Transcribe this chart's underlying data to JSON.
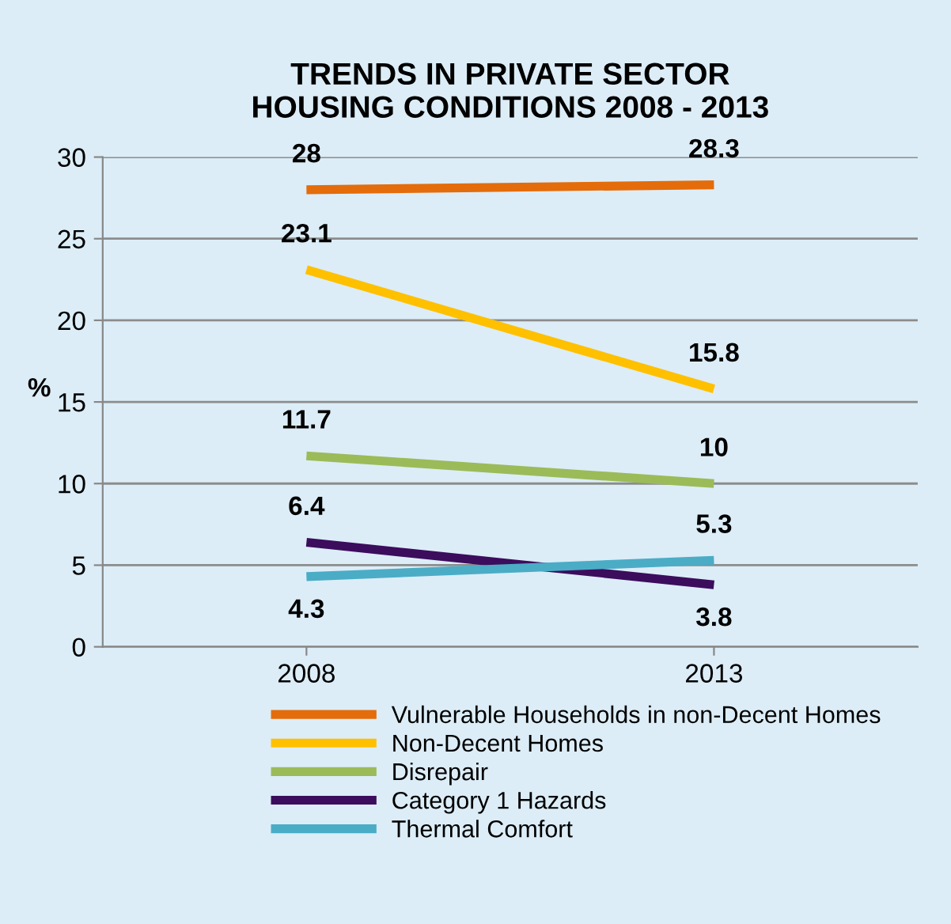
{
  "chart_data": {
    "type": "line",
    "title": "TRENDS IN PRIVATE SECTOR\nHOUSING CONDITIONS 2008 - 2013",
    "ylabel": "%",
    "categories": [
      "2008",
      "2013"
    ],
    "series": [
      {
        "name": "Vulnerable Households in non-Decent Homes",
        "color": "#e46c0a",
        "values": [
          28,
          28.3
        ]
      },
      {
        "name": "Non-Decent Homes",
        "color": "#ffc000",
        "values": [
          23.1,
          15.8
        ]
      },
      {
        "name": "Disrepair",
        "color": "#9bbb59",
        "values": [
          11.7,
          10
        ]
      },
      {
        "name": "Category 1 Hazards",
        "color": "#3c0d5c",
        "values": [
          6.4,
          3.8
        ]
      },
      {
        "name": "Thermal Comfort",
        "color": "#4bacc6",
        "values": [
          4.3,
          5.3
        ]
      }
    ],
    "ylim": [
      0,
      30
    ],
    "yticks": [
      0,
      5,
      10,
      15,
      20,
      25,
      30
    ],
    "grid": "y",
    "legend": "bottom",
    "data_labels": true,
    "marker": "none"
  }
}
